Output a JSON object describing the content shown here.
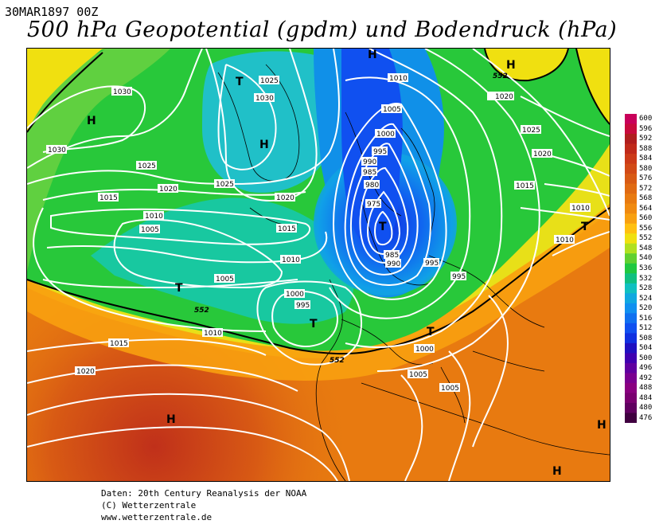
{
  "header": {
    "run_title": "30MAR1897 00Z",
    "main_title": "500 hPa Geopotential (gpdm) und Bodendruck (hPa)"
  },
  "legend": {
    "levels": [
      "600",
      "596",
      "592",
      "588",
      "584",
      "580",
      "576",
      "572",
      "568",
      "564",
      "560",
      "556",
      "552",
      "548",
      "540",
      "536",
      "532",
      "528",
      "524",
      "520",
      "516",
      "512",
      "508",
      "504",
      "500",
      "496",
      "492",
      "488",
      "484",
      "480",
      "476"
    ],
    "colors": [
      "#c8005a",
      "#c80a3c",
      "#b01e1e",
      "#c02a1a",
      "#cc3a18",
      "#d24a16",
      "#d85a14",
      "#e06a12",
      "#e87a10",
      "#f08a10",
      "#f8a010",
      "#ffc010",
      "#f0e010",
      "#b0e020",
      "#60d030",
      "#20c840",
      "#10c080",
      "#10c0c0",
      "#10a8e0",
      "#1090f0",
      "#1070f0",
      "#1050f0",
      "#1030e0",
      "#2010c0",
      "#4000b0",
      "#6000a0",
      "#7a0090",
      "#8a0080",
      "#7a0070",
      "#600060",
      "#400040"
    ]
  },
  "map": {
    "geopotential_labels": [
      {
        "text": "552"
      },
      {
        "text": "552"
      },
      {
        "text": "552"
      }
    ],
    "pressure_centers": [
      {
        "type": "H"
      },
      {
        "type": "T"
      },
      {
        "type": "H"
      },
      {
        "type": "H"
      },
      {
        "type": "H"
      },
      {
        "type": "T"
      },
      {
        "type": "T"
      },
      {
        "type": "T"
      },
      {
        "type": "T"
      },
      {
        "type": "T"
      },
      {
        "type": "H"
      },
      {
        "type": "H"
      },
      {
        "type": "H"
      }
    ],
    "isobar_labels": [
      "1030",
      "1030",
      "1025",
      "1030",
      "1025",
      "1020",
      "1015",
      "1010",
      "1005",
      "1025",
      "1020",
      "1015",
      "1010",
      "1005",
      "1000",
      "995",
      "1010",
      "1015",
      "1020",
      "1005",
      "1000",
      "995",
      "990",
      "985",
      "980",
      "975",
      "990",
      "985",
      "995",
      "995",
      "1010",
      "1005",
      "1000",
      "1005",
      "1010",
      "1020",
      "1030",
      "1025",
      "1020",
      "1015",
      "1010",
      "1010"
    ]
  },
  "footer": {
    "line1": "Daten: 20th Century Reanalysis der NOAA",
    "line2": "(C) Wetterzentrale",
    "line3": "www.wetterzentrale.de"
  }
}
